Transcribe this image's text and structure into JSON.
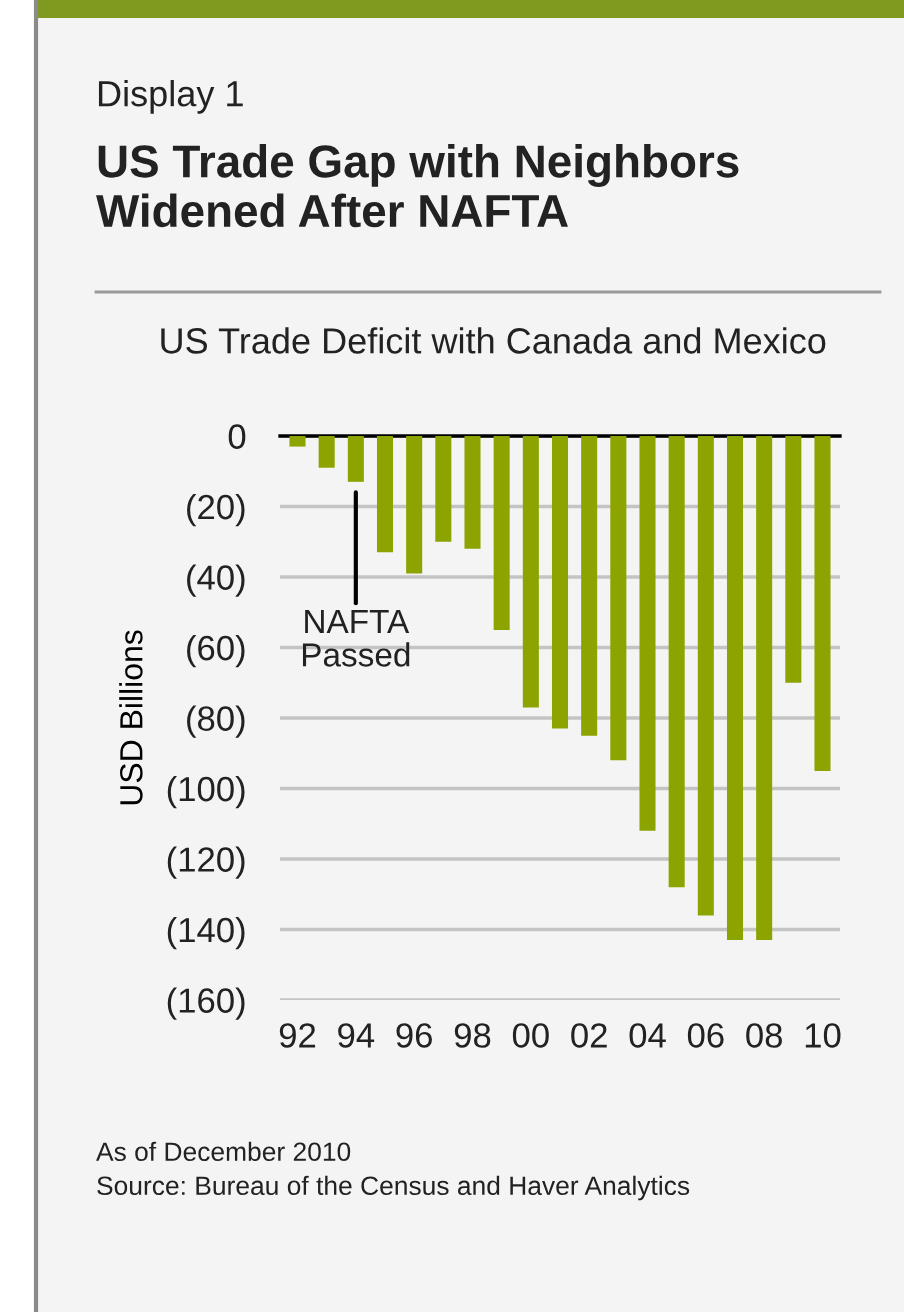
{
  "chart_data": {
    "type": "bar",
    "title": "US Trade Gap with Neighbors Widened After NAFTA",
    "subtitle": "US Trade Deficit with Canada and Mexico",
    "ylabel": "USD Billions",
    "categories": [
      "92",
      null,
      "94",
      null,
      "96",
      null,
      "98",
      null,
      "00",
      null,
      "02",
      null,
      "04",
      null,
      "06",
      null,
      "08",
      null,
      "10"
    ],
    "values": [
      -3,
      -9,
      -13,
      -33,
      -39,
      -30,
      -32,
      -55,
      -77,
      -83,
      -85,
      -92,
      -112,
      -128,
      -136,
      -143,
      -143,
      -70,
      -95
    ],
    "color": "#8da300",
    "ylim": [
      -160,
      0
    ],
    "yticks": [
      {
        "value": -160,
        "label": "(160)"
      },
      {
        "value": -140,
        "label": "(140)"
      },
      {
        "value": -120,
        "label": "(120)"
      },
      {
        "value": -100,
        "label": "(100)"
      },
      {
        "value": -80,
        "label": "(80)"
      },
      {
        "value": -60,
        "label": "(60)"
      },
      {
        "value": -40,
        "label": "(40)"
      },
      {
        "value": -20,
        "label": "(20)"
      },
      0
    ],
    "grid": "y",
    "legend": false,
    "annotations": [
      "Display 1",
      {
        "text": "NAFTA\nPassed",
        "x": "94",
        "y": -13
      },
      "As of December 2010",
      "Source: Bureau of the Census and Haver Analytics"
    ]
  }
}
